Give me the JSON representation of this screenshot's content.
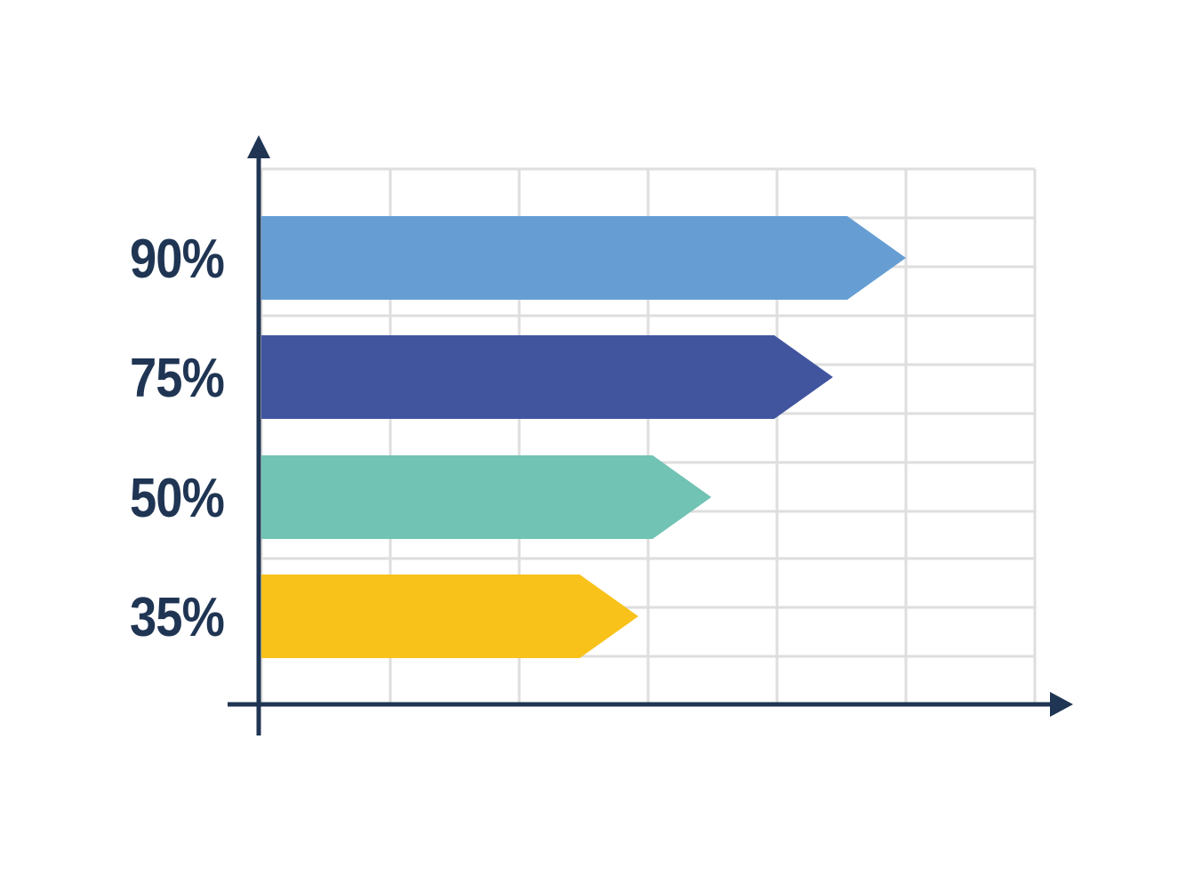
{
  "chart_data": {
    "type": "bar",
    "orientation": "horizontal",
    "bar_shape": "arrow",
    "grid": true,
    "legend": "none",
    "title": "",
    "xlabel": "",
    "ylabel": "",
    "bars": [
      {
        "label": "90%",
        "value": 90,
        "color": "#669ED4"
      },
      {
        "label": "75%",
        "value": 75,
        "color": "#41559F"
      },
      {
        "label": "50%",
        "value": 50,
        "color": "#71C3B4"
      },
      {
        "label": "35%",
        "value": 35,
        "color": "#F8C21A"
      }
    ],
    "colors": {
      "axis": "#1F3553",
      "grid": "#DEDEDE",
      "label": "#1F3553",
      "background": "#FFFFFF"
    }
  }
}
